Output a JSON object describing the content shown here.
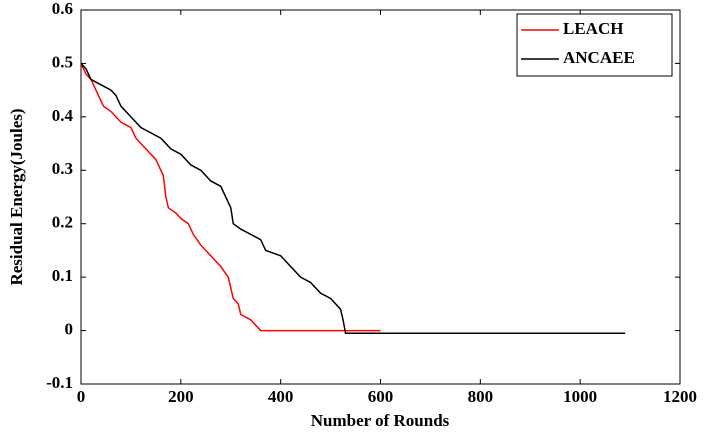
{
  "chart_data": {
    "type": "line",
    "x_label": "Number of Rounds",
    "y_label": "Residual Energy(Joules)",
    "xlim": [
      0,
      1200
    ],
    "xticks": [
      0,
      200,
      400,
      600,
      800,
      1000,
      1200
    ],
    "ylim": [
      -0.1,
      0.6
    ],
    "yticks": [
      -0.1,
      0,
      0.1,
      0.2,
      0.3,
      0.4,
      0.5,
      0.6
    ],
    "legend": "upper right",
    "series": [
      {
        "name": "LEACH",
        "color": "#ff0000",
        "x": [
          0,
          10,
          20,
          30,
          40,
          45,
          60,
          80,
          100,
          110,
          130,
          150,
          160,
          165,
          170,
          175,
          190,
          200,
          215,
          225,
          240,
          260,
          280,
          295,
          300,
          305,
          315,
          320,
          340,
          360,
          600
        ],
        "values": [
          0.5,
          0.48,
          0.47,
          0.45,
          0.43,
          0.42,
          0.41,
          0.39,
          0.38,
          0.36,
          0.34,
          0.32,
          0.3,
          0.29,
          0.25,
          0.23,
          0.22,
          0.21,
          0.2,
          0.18,
          0.16,
          0.14,
          0.12,
          0.1,
          0.08,
          0.06,
          0.05,
          0.03,
          0.02,
          0.0,
          0.0
        ]
      },
      {
        "name": "ANCAEE",
        "color": "#000000",
        "x": [
          0,
          10,
          20,
          40,
          60,
          70,
          80,
          100,
          120,
          140,
          160,
          180,
          200,
          220,
          240,
          260,
          280,
          290,
          300,
          305,
          320,
          340,
          360,
          370,
          400,
          420,
          440,
          460,
          480,
          500,
          520,
          525,
          530,
          1090
        ],
        "values": [
          0.5,
          0.49,
          0.47,
          0.46,
          0.45,
          0.44,
          0.42,
          0.4,
          0.38,
          0.37,
          0.36,
          0.34,
          0.33,
          0.31,
          0.3,
          0.28,
          0.27,
          0.25,
          0.23,
          0.2,
          0.19,
          0.18,
          0.17,
          0.15,
          0.14,
          0.12,
          0.1,
          0.09,
          0.07,
          0.06,
          0.04,
          0.02,
          -0.005,
          -0.005
        ]
      }
    ]
  }
}
